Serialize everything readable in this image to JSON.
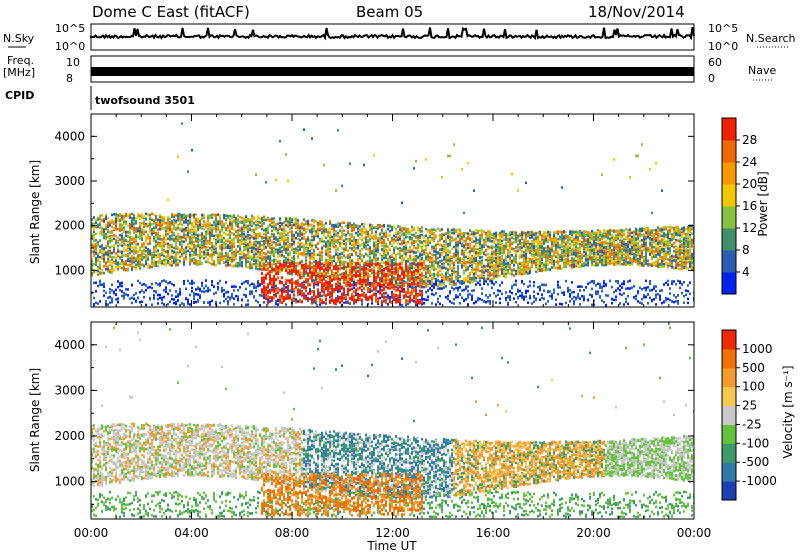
{
  "header": {
    "title": "Dome C East (fitACF)",
    "beam": "Beam 05",
    "date": "18/Nov/2014"
  },
  "status_panels": {
    "nsky_label": "N.Sky",
    "nsearch_label": "N.Search",
    "nsky_ticks": [
      "10^5",
      "10^0"
    ],
    "nsearch_ticks": [
      "10^5",
      "10^0"
    ],
    "freq_label_1": "Freq.",
    "freq_label_2": "[MHz]",
    "freq_ticks": [
      "10",
      "8"
    ],
    "nave_label": "Nave",
    "nave_ticks": [
      "60",
      "0"
    ],
    "cpid_label": "CPID",
    "cpid_value": "twofsound 3501"
  },
  "chart_data": [
    {
      "type": "heatmap",
      "name": "power",
      "ylabel": "Slant Range [km]",
      "xlabel": "",
      "ylim": [
        180,
        4500
      ],
      "y_ticks": [
        1000,
        2000,
        3000,
        4000
      ],
      "x_ticks": [
        "00:00",
        "04:00",
        "08:00",
        "12:00",
        "16:00",
        "20:00",
        "00:00"
      ],
      "colorbar": {
        "label": "Power [dB]",
        "ticks": [
          "28",
          "24",
          "20",
          "16",
          "12",
          "8",
          "4"
        ],
        "colors": [
          "#0022ee",
          "#2a5fb0",
          "#3f8f6a",
          "#88c040",
          "#f3c800",
          "#f79a00",
          "#f06800",
          "#ee2200"
        ]
      }
    },
    {
      "type": "heatmap",
      "name": "velocity",
      "ylabel": "Slant Range [km]",
      "xlabel": "Time UT",
      "ylim": [
        180,
        4500
      ],
      "y_ticks": [
        1000,
        2000,
        3000,
        4000
      ],
      "x_ticks": [
        "00:00",
        "04:00",
        "08:00",
        "12:00",
        "16:00",
        "20:00",
        "00:00"
      ],
      "colorbar": {
        "label": "Velocity [m s⁻¹]",
        "ticks": [
          "1000",
          "500",
          "100",
          "25",
          "-25",
          "-100",
          "-500",
          "-1000"
        ],
        "colors": [
          "#1f3fb0",
          "#2f7aa8",
          "#3f9a6a",
          "#66c040",
          "#c8c8c8",
          "#f6c850",
          "#f59a30",
          "#f07000",
          "#ee2a00"
        ]
      }
    }
  ]
}
